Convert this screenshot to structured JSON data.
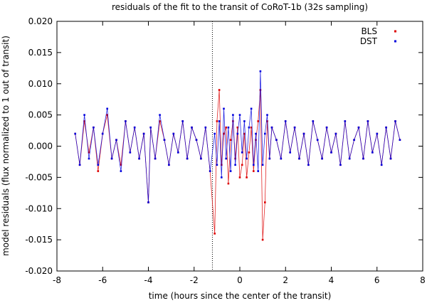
{
  "chart_data": {
    "type": "scatter",
    "title": "residuals of the fit to the transit of CoRoT-1b (32s sampling)",
    "xlabel": "time (hours since the center of the transit)",
    "ylabel": "model residuals (flux normalized to 1 out of transit)",
    "xlim": [
      -8,
      8
    ],
    "ylim": [
      -0.02,
      0.02
    ],
    "x_ticks": [
      "-8",
      "-6",
      "-4",
      "-2",
      "0",
      "2",
      "4",
      "6",
      "8"
    ],
    "y_ticks": [
      "-0.020",
      "-0.015",
      "-0.010",
      "-0.005",
      "0.000",
      "0.005",
      "0.010",
      "0.015",
      "0.020"
    ],
    "legend_position": "top-right",
    "grid": false,
    "vertical_marker_x": -1.2,
    "series": [
      {
        "name": "BLS",
        "color": "#dd0000",
        "style": "points-and-lines",
        "x": [
          -7.2,
          -7.0,
          -6.8,
          -6.6,
          -6.4,
          -6.2,
          -6.0,
          -5.8,
          -5.6,
          -5.4,
          -5.2,
          -5.0,
          -4.8,
          -4.6,
          -4.4,
          -4.2,
          -4.0,
          -3.9,
          -3.7,
          -3.5,
          -3.3,
          -3.1,
          -2.9,
          -2.7,
          -2.5,
          -2.3,
          -2.1,
          -1.9,
          -1.7,
          -1.5,
          -1.3,
          -1.1,
          -1.0,
          -0.9,
          -0.8,
          -0.7,
          -0.6,
          -0.5,
          -0.4,
          -0.3,
          -0.2,
          -0.1,
          0.0,
          0.1,
          0.2,
          0.3,
          0.4,
          0.5,
          0.6,
          0.7,
          0.8,
          0.9,
          1.0,
          1.1,
          1.2,
          1.3,
          1.4,
          1.6,
          1.8,
          2.0,
          2.2,
          2.4,
          2.6,
          2.8,
          3.0,
          3.2,
          3.4,
          3.6,
          3.8,
          4.0,
          4.2,
          4.4,
          4.6,
          4.8,
          5.0,
          5.2,
          5.4,
          5.6,
          5.8,
          6.0,
          6.2,
          6.4,
          6.6,
          6.8,
          7.0
        ],
        "y": [
          0.002,
          -0.003,
          0.004,
          -0.001,
          0.003,
          -0.004,
          0.002,
          0.005,
          -0.002,
          0.001,
          -0.003,
          0.004,
          -0.001,
          0.003,
          -0.002,
          0.002,
          -0.009,
          0.003,
          -0.002,
          0.004,
          0.001,
          -0.003,
          0.002,
          -0.001,
          0.004,
          -0.002,
          0.003,
          0.001,
          -0.002,
          0.003,
          -0.004,
          -0.014,
          0.004,
          0.009,
          -0.003,
          0.002,
          0.003,
          -0.006,
          0.001,
          0.004,
          -0.002,
          0.003,
          -0.005,
          -0.003,
          0.002,
          -0.005,
          -0.001,
          0.003,
          -0.004,
          0.001,
          0.004,
          0.009,
          -0.015,
          -0.009,
          0.004,
          -0.002,
          0.003,
          0.001,
          -0.002,
          0.004,
          -0.001,
          0.003,
          -0.002,
          0.002,
          -0.003,
          0.004,
          0.001,
          -0.002,
          0.003,
          -0.001,
          0.002,
          -0.003,
          0.004,
          -0.002,
          0.001,
          0.003,
          -0.002,
          0.004,
          -0.001,
          0.002,
          -0.003,
          0.003,
          -0.002,
          0.004,
          0.001
        ]
      },
      {
        "name": "DST",
        "color": "#0000dd",
        "style": "points-and-lines",
        "x": [
          -7.2,
          -7.0,
          -6.8,
          -6.6,
          -6.4,
          -6.2,
          -6.0,
          -5.8,
          -5.6,
          -5.4,
          -5.2,
          -5.0,
          -4.8,
          -4.6,
          -4.4,
          -4.2,
          -4.0,
          -3.9,
          -3.7,
          -3.5,
          -3.3,
          -3.1,
          -2.9,
          -2.7,
          -2.5,
          -2.3,
          -2.1,
          -1.9,
          -1.7,
          -1.5,
          -1.3,
          -1.1,
          -1.0,
          -0.9,
          -0.8,
          -0.7,
          -0.6,
          -0.5,
          -0.4,
          -0.3,
          -0.2,
          -0.1,
          0.0,
          0.1,
          0.2,
          0.3,
          0.4,
          0.5,
          0.6,
          0.7,
          0.8,
          0.9,
          1.0,
          1.1,
          1.2,
          1.3,
          1.4,
          1.6,
          1.8,
          2.0,
          2.2,
          2.4,
          2.6,
          2.8,
          3.0,
          3.2,
          3.4,
          3.6,
          3.8,
          4.0,
          4.2,
          4.4,
          4.6,
          4.8,
          5.0,
          5.2,
          5.4,
          5.6,
          5.8,
          6.0,
          6.2,
          6.4,
          6.6,
          6.8,
          7.0
        ],
        "y": [
          0.002,
          -0.003,
          0.005,
          -0.002,
          0.003,
          -0.003,
          0.002,
          0.006,
          -0.002,
          0.001,
          -0.004,
          0.004,
          -0.001,
          0.003,
          -0.002,
          0.002,
          -0.009,
          0.003,
          -0.002,
          0.005,
          0.001,
          -0.003,
          0.002,
          -0.001,
          0.004,
          -0.002,
          0.003,
          0.001,
          -0.002,
          0.003,
          -0.004,
          0.002,
          -0.003,
          0.004,
          -0.005,
          0.006,
          -0.002,
          0.003,
          -0.004,
          0.005,
          -0.003,
          0.002,
          0.005,
          -0.001,
          0.004,
          -0.002,
          0.003,
          0.006,
          -0.003,
          0.002,
          -0.004,
          0.012,
          -0.003,
          0.002,
          0.005,
          -0.002,
          0.003,
          0.001,
          -0.002,
          0.004,
          -0.001,
          0.003,
          -0.002,
          0.002,
          -0.003,
          0.004,
          0.001,
          -0.002,
          0.003,
          -0.001,
          0.002,
          -0.003,
          0.004,
          -0.002,
          0.001,
          0.003,
          -0.002,
          0.004,
          -0.001,
          0.002,
          -0.003,
          0.003,
          -0.002,
          0.004,
          0.001
        ]
      }
    ]
  }
}
